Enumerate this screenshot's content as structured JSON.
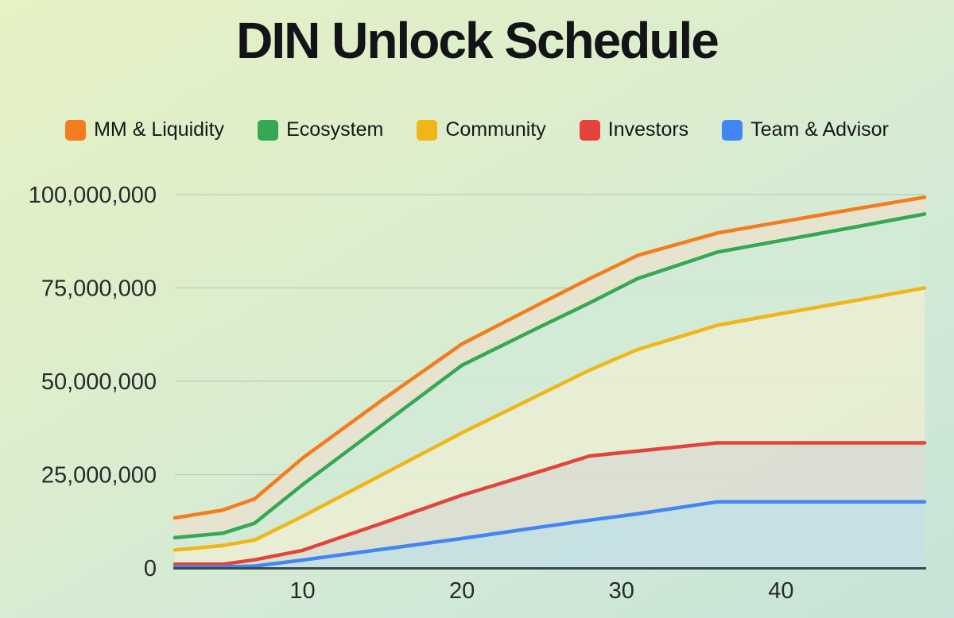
{
  "title": "DIN Unlock Schedule",
  "colors": {
    "background_top_left": "#e6f1c4",
    "background_bottom_right": "#c7e3d7",
    "axis_line": "#3b4a4e",
    "gridline": "#a9b8b1",
    "axis_text": "#26292b",
    "title_text": "#121418"
  },
  "chart_data": {
    "type": "area",
    "title": "DIN Unlock Schedule",
    "xlabel": "",
    "ylabel": "",
    "xlim": [
      2,
      49
    ],
    "ylim": [
      0,
      100000000
    ],
    "grid": true,
    "legend_position": "top",
    "x_ticks": [
      10,
      20,
      30,
      40
    ],
    "y_ticks": [
      0,
      25000000,
      50000000,
      75000000,
      100000000
    ],
    "y_tick_labels": [
      "0",
      "25,000,000",
      "50,000,000",
      "75,000,000",
      "100,000,000"
    ],
    "x": [
      2,
      5,
      7,
      10,
      15,
      20,
      25,
      28,
      31,
      36,
      40,
      45,
      49
    ],
    "series": [
      {
        "name": "MM & Liquidity",
        "color": "#f57c1d",
        "band_fill": "#e7e3cd",
        "values": [
          13400000,
          15500000,
          18500000,
          29400000,
          45000000,
          60000000,
          71000000,
          77500000,
          83700000,
          89700000,
          92700000,
          96400000,
          99300000
        ]
      },
      {
        "name": "Ecosystem",
        "color": "#34a853",
        "band_fill": "#d2e9d6",
        "values": [
          8100000,
          9300000,
          12000000,
          22300000,
          38300000,
          54300000,
          64800000,
          71000000,
          77500000,
          84600000,
          87700000,
          91600000,
          94800000
        ]
      },
      {
        "name": "Community",
        "color": "#f0b616",
        "band_fill": "#e8eed2",
        "values": [
          4800000,
          6000000,
          7500000,
          13800000,
          25000000,
          36200000,
          46700000,
          53000000,
          58500000,
          65000000,
          68100000,
          71900000,
          75000000
        ]
      },
      {
        "name": "Investors",
        "color": "#e3433a",
        "band_fill": "#dcded2",
        "values": [
          1000000,
          1000000,
          2200000,
          4700000,
          12000000,
          19500000,
          26000000,
          30000000,
          31300000,
          33500000,
          33500000,
          33500000,
          33500000
        ]
      },
      {
        "name": "Team & Advisor",
        "color": "#4285f4",
        "band_fill": "#c6dfe4",
        "values": [
          300000,
          300000,
          500000,
          2100000,
          5000000,
          7900000,
          11000000,
          12800000,
          14500000,
          17700000,
          17700000,
          17700000,
          17700000
        ]
      }
    ]
  }
}
